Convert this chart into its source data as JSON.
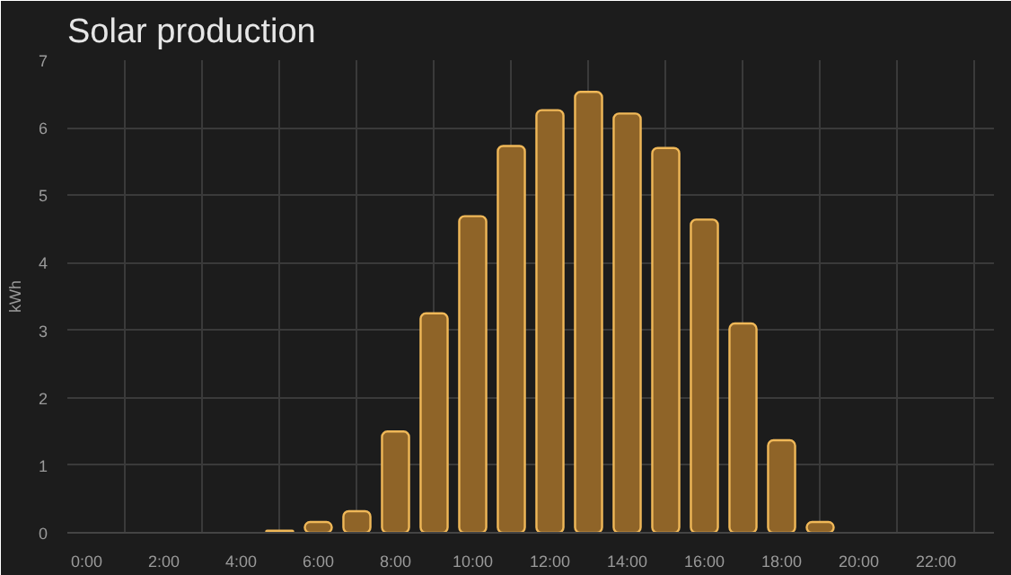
{
  "chart_data": {
    "type": "bar",
    "title": "Solar production",
    "ylabel": "kWh",
    "x": [
      5,
      6,
      7,
      8,
      9,
      10,
      11,
      12,
      13,
      14,
      15,
      16,
      17,
      18,
      19
    ],
    "series": [
      {
        "color": "#8f6428",
        "values": [
          0.03,
          0.16,
          0.32,
          1.5,
          3.25,
          4.69,
          5.73,
          6.26,
          6.53,
          6.21,
          5.7,
          4.64,
          3.1,
          1.37,
          0.16
        ]
      }
    ],
    "xlim": [
      -0.5,
      23.5
    ],
    "xticks": [
      {
        "value": 0,
        "label": "0:00"
      },
      {
        "value": 1,
        "label": null
      },
      {
        "value": 2,
        "label": "2:00"
      },
      {
        "value": 3,
        "label": null
      },
      {
        "value": 4,
        "label": "4:00"
      },
      {
        "value": 5,
        "label": null
      },
      {
        "value": 6,
        "label": "6:00"
      },
      {
        "value": 7,
        "label": null
      },
      {
        "value": 8,
        "label": "8:00"
      },
      {
        "value": 9,
        "label": null
      },
      {
        "value": 10,
        "label": "10:00"
      },
      {
        "value": 11,
        "label": null
      },
      {
        "value": 12,
        "label": "12:00"
      },
      {
        "value": 13,
        "label": null
      },
      {
        "value": 14,
        "label": "14:00"
      },
      {
        "value": 15,
        "label": null
      },
      {
        "value": 16,
        "label": "16:00"
      },
      {
        "value": 17,
        "label": null
      },
      {
        "value": 18,
        "label": "18:00"
      },
      {
        "value": 19,
        "label": null
      },
      {
        "value": 20,
        "label": "20:00"
      },
      {
        "value": 21,
        "label": null
      },
      {
        "value": 22,
        "label": "22:00"
      },
      {
        "value": 23,
        "label": null
      }
    ],
    "ylim": [
      0,
      7
    ],
    "yticks": [
      0,
      1,
      2,
      3,
      4,
      5,
      6,
      7
    ],
    "grid": true
  }
}
